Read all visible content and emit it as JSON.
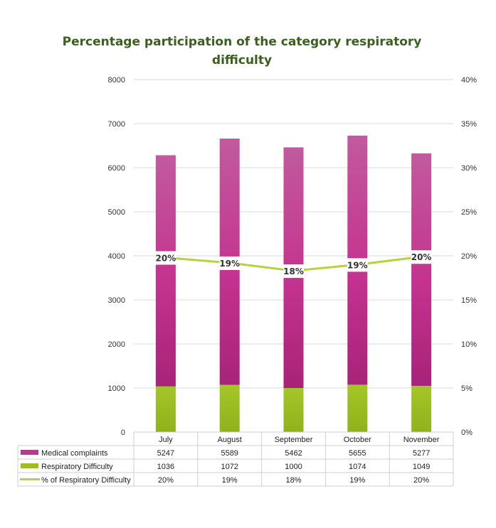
{
  "chart_data": {
    "type": "bar",
    "stacked": true,
    "title_lines": [
      "Percentage participation  of the category respiratory",
      "difficulty"
    ],
    "title_color": "#3a5f1e",
    "categories": [
      "July",
      "August",
      "September",
      "October",
      "November"
    ],
    "y_left": {
      "min": 0,
      "max": 8000,
      "step": 1000,
      "ticks": [
        "0",
        "1000",
        "2000",
        "3000",
        "4000",
        "5000",
        "6000",
        "7000",
        "8000"
      ]
    },
    "y_right": {
      "min": 0,
      "max": 0.4,
      "step": 0.05,
      "ticks": [
        "0%",
        "5%",
        "10%",
        "15%",
        "20%",
        "25%",
        "30%",
        "35%",
        "40%"
      ]
    },
    "series": [
      {
        "name": "Medical complaints",
        "kind": "bar",
        "axis": "left",
        "color": "#c4338f",
        "values": [
          5247,
          5589,
          5462,
          5655,
          5277
        ],
        "display": [
          "5247",
          "5589",
          "5462",
          "5655",
          "5277"
        ]
      },
      {
        "name": "Respiratory Difficulty",
        "kind": "bar",
        "axis": "left",
        "color": "#9bbf22",
        "values": [
          1036,
          1072,
          1000,
          1074,
          1049
        ],
        "display": [
          "1036",
          "1072",
          "1000",
          "1074",
          "1049"
        ]
      },
      {
        "name": "% of Respiratory Difficulty",
        "kind": "line",
        "axis": "right",
        "color": "#b5d33f",
        "values": [
          0.198,
          0.192,
          0.183,
          0.19,
          0.199
        ],
        "display": [
          "20%",
          "19%",
          "18%",
          "19%",
          "20%"
        ]
      }
    ],
    "grid": true,
    "legend": "data-table"
  }
}
